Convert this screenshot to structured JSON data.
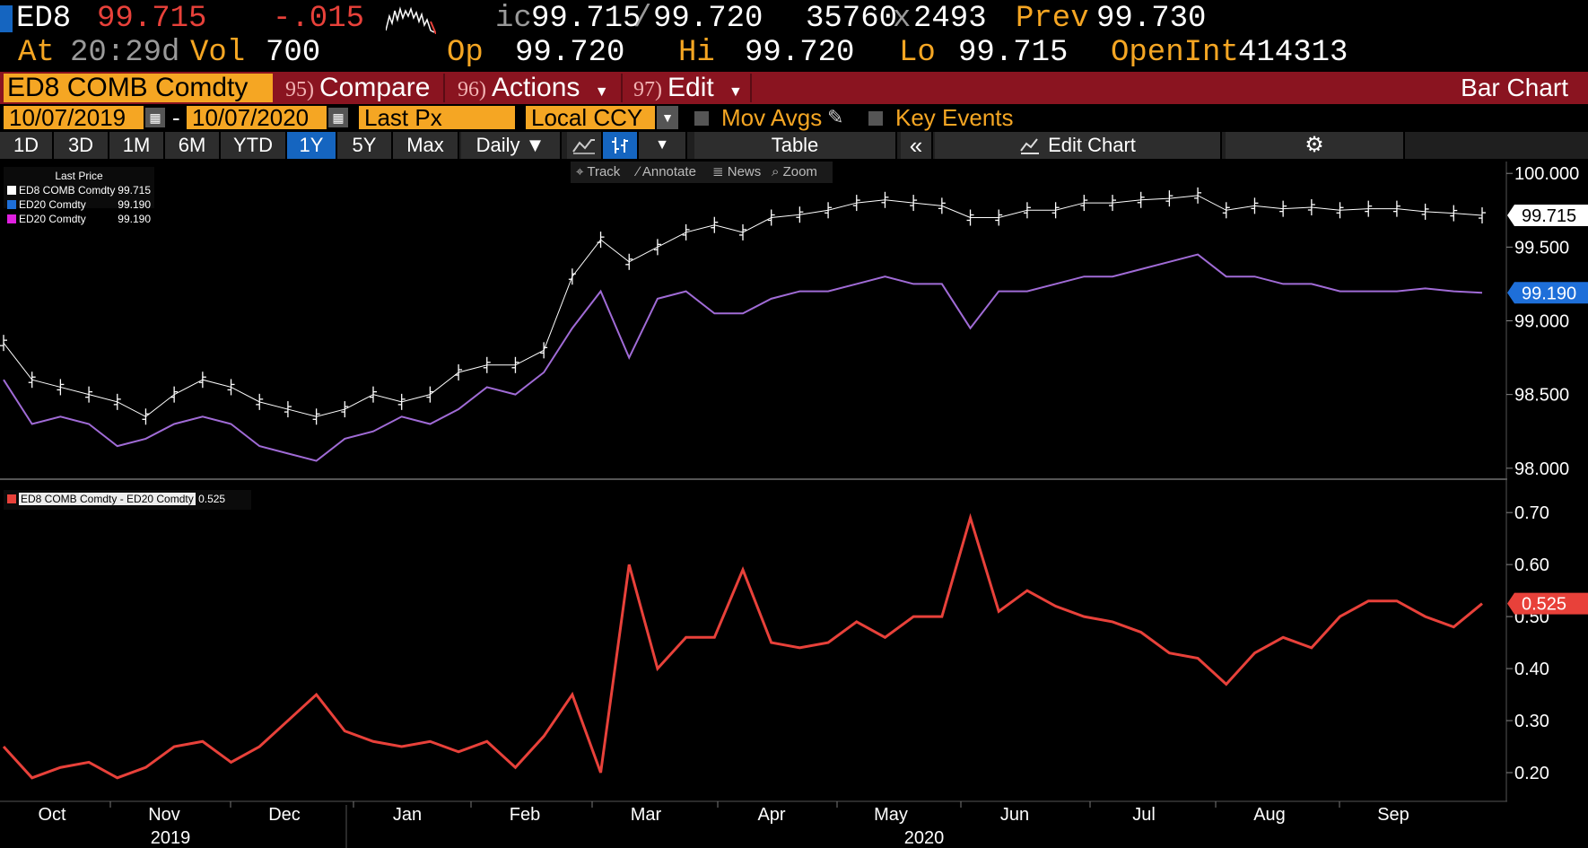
{
  "quote": {
    "ticker": "ED8",
    "last": "99.715",
    "change": "-.015",
    "bidask_prefix": "ic",
    "bid": "99.715",
    "ask": "99.720",
    "bid_size": "35760",
    "ask_size": "2493",
    "prev_label": "Prev",
    "prev": "99.730",
    "at_label": "At",
    "time": "20:29d",
    "vol_label": "Vol",
    "vol": "700",
    "op_label": "Op",
    "open": "99.720",
    "hi_label": "Hi",
    "high": "99.720",
    "lo_label": "Lo",
    "low": "99.715",
    "oi_label": "OpenInt",
    "open_int": "414313"
  },
  "cmdbar": {
    "security": "ED8 COMB Comdty",
    "compare_num": "95)",
    "compare": "Compare",
    "actions_num": "96)",
    "actions": "Actions",
    "edit_num": "97)",
    "edit": "Edit",
    "chart_type": "Bar Chart"
  },
  "datebar": {
    "start": "10/07/2019",
    "dash": "-",
    "end": "10/07/2020",
    "field": "Last Px",
    "currency": "Local CCY",
    "mov_avgs": "Mov Avgs",
    "key_events": "Key Events"
  },
  "rangebar": {
    "ranges": [
      "1D",
      "3D",
      "1M",
      "6M",
      "YTD",
      "1Y",
      "5Y",
      "Max"
    ],
    "selected": "1Y",
    "period": "Daily",
    "table": "Table",
    "edit_chart": "Edit Chart"
  },
  "toolbar": {
    "track": "Track",
    "annotate": "Annotate",
    "news": "News",
    "zoom": "Zoom"
  },
  "legend_top": {
    "title": "Last Price",
    "items": [
      {
        "name": "ED8 COMB Comdty",
        "value": "99.715",
        "color": "#ffffff"
      },
      {
        "name": "ED20 Comdty",
        "value": "99.190",
        "color": "#1e6fd9"
      },
      {
        "name": "ED20 Comdty",
        "value": "99.190",
        "color": "#e020e0"
      }
    ]
  },
  "legend_bottom": {
    "name": "ED8 COMB Comdty - ED20 Comdty",
    "value": "0.525",
    "color": "#e8413a"
  },
  "xaxis": {
    "months": [
      "Oct",
      "Nov",
      "Dec",
      "Jan",
      "Feb",
      "Mar",
      "Apr",
      "May",
      "Jun",
      "Jul",
      "Aug",
      "Sep"
    ],
    "years": [
      "2019",
      "2020"
    ]
  },
  "chart_data": [
    {
      "type": "line",
      "y_ticks": [
        "100.000",
        "99.500",
        "99.000",
        "98.500",
        "98.000"
      ],
      "ylim": [
        97.95,
        100.05
      ],
      "last_tags": [
        {
          "value": "99.715",
          "color": "#ffffff"
        },
        {
          "value": "99.190",
          "color": "#1e6fd9"
        }
      ],
      "x": [
        "2019-10-07",
        "2019-10-14",
        "2019-10-21",
        "2019-10-28",
        "2019-11-04",
        "2019-11-11",
        "2019-11-18",
        "2019-11-25",
        "2019-12-02",
        "2019-12-09",
        "2019-12-16",
        "2019-12-23",
        "2019-12-30",
        "2020-01-06",
        "2020-01-13",
        "2020-01-20",
        "2020-01-27",
        "2020-02-03",
        "2020-02-10",
        "2020-02-17",
        "2020-02-24",
        "2020-03-02",
        "2020-03-09",
        "2020-03-16",
        "2020-03-23",
        "2020-03-30",
        "2020-04-06",
        "2020-04-13",
        "2020-04-20",
        "2020-04-27",
        "2020-05-04",
        "2020-05-11",
        "2020-05-18",
        "2020-05-25",
        "2020-06-01",
        "2020-06-08",
        "2020-06-15",
        "2020-06-22",
        "2020-06-29",
        "2020-07-06",
        "2020-07-13",
        "2020-07-20",
        "2020-07-27",
        "2020-08-03",
        "2020-08-10",
        "2020-08-17",
        "2020-08-24",
        "2020-08-31",
        "2020-09-07",
        "2020-09-14",
        "2020-09-21",
        "2020-09-28",
        "2020-10-05"
      ],
      "series": [
        {
          "name": "ED8 COMB Comdty",
          "color": "#ffffff",
          "values": [
            98.85,
            98.6,
            98.55,
            98.5,
            98.45,
            98.35,
            98.5,
            98.6,
            98.55,
            98.45,
            98.4,
            98.35,
            98.4,
            98.5,
            98.45,
            98.5,
            98.65,
            98.7,
            98.7,
            98.8,
            99.3,
            99.55,
            99.4,
            99.5,
            99.6,
            99.65,
            99.6,
            99.7,
            99.72,
            99.75,
            99.8,
            99.82,
            99.8,
            99.78,
            99.7,
            99.7,
            99.75,
            99.75,
            99.8,
            99.8,
            99.82,
            99.83,
            99.85,
            99.75,
            99.78,
            99.76,
            99.77,
            99.75,
            99.76,
            99.76,
            99.74,
            99.73,
            99.715
          ]
        },
        {
          "name": "ED20 Comdty",
          "color": "#a06bd6",
          "values": [
            98.6,
            98.3,
            98.35,
            98.3,
            98.15,
            98.2,
            98.3,
            98.35,
            98.3,
            98.15,
            98.1,
            98.05,
            98.2,
            98.25,
            98.35,
            98.3,
            98.4,
            98.55,
            98.5,
            98.65,
            98.95,
            99.2,
            98.75,
            99.15,
            99.2,
            99.05,
            99.05,
            99.15,
            99.2,
            99.2,
            99.25,
            99.3,
            99.25,
            99.25,
            98.95,
            99.2,
            99.2,
            99.25,
            99.3,
            99.3,
            99.35,
            99.4,
            99.45,
            99.3,
            99.3,
            99.25,
            99.25,
            99.2,
            99.2,
            99.2,
            99.22,
            99.2,
            99.19
          ]
        }
      ]
    },
    {
      "type": "line",
      "y_ticks": [
        "0.70",
        "0.60",
        "0.50",
        "0.40",
        "0.30",
        "0.20"
      ],
      "ylim": [
        0.15,
        0.74
      ],
      "last_tags": [
        {
          "value": "0.525",
          "color": "#e8413a"
        }
      ],
      "series": [
        {
          "name": "ED8 COMB Comdty - ED20 Comdty",
          "color": "#e8413a",
          "values": [
            0.25,
            0.19,
            0.21,
            0.22,
            0.19,
            0.21,
            0.25,
            0.26,
            0.22,
            0.25,
            0.3,
            0.35,
            0.28,
            0.26,
            0.25,
            0.26,
            0.24,
            0.26,
            0.21,
            0.27,
            0.35,
            0.2,
            0.6,
            0.4,
            0.46,
            0.46,
            0.59,
            0.45,
            0.44,
            0.45,
            0.49,
            0.46,
            0.5,
            0.5,
            0.69,
            0.51,
            0.55,
            0.52,
            0.5,
            0.49,
            0.47,
            0.43,
            0.42,
            0.37,
            0.43,
            0.46,
            0.44,
            0.5,
            0.53,
            0.53,
            0.5,
            0.48,
            0.525
          ]
        }
      ]
    }
  ]
}
